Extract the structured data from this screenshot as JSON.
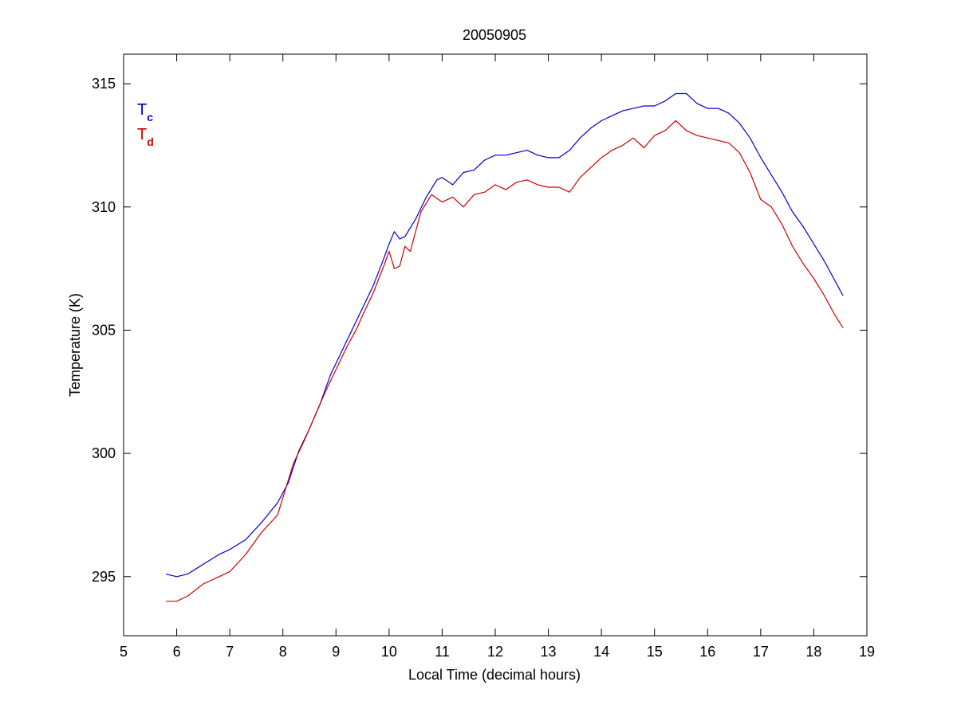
{
  "chart_data": {
    "type": "line",
    "title": "20050905",
    "xlabel": "Local Time (decimal hours)",
    "ylabel": "Temperature (K)",
    "xlim": [
      5,
      19
    ],
    "ylim": [
      292.6,
      316.2
    ],
    "xticks": [
      "5",
      "6",
      "7",
      "8",
      "9",
      "10",
      "11",
      "12",
      "13",
      "14",
      "15",
      "16",
      "17",
      "18",
      "19"
    ],
    "yticks": [
      "295",
      "300",
      "305",
      "310",
      "315"
    ],
    "xtick_values": [
      5,
      6,
      7,
      8,
      9,
      10,
      11,
      12,
      13,
      14,
      15,
      16,
      17,
      18,
      19
    ],
    "ytick_values": [
      295,
      300,
      305,
      310,
      315
    ],
    "grid": false,
    "legend_position": "top-left",
    "series": [
      {
        "name": "T",
        "subscript": "c",
        "color": "#0000cc",
        "x": [
          5.8,
          6.0,
          6.2,
          6.5,
          6.8,
          7.0,
          7.3,
          7.6,
          7.9,
          8.1,
          8.3,
          8.5,
          8.7,
          8.9,
          9.1,
          9.3,
          9.5,
          9.7,
          9.9,
          10.0,
          10.1,
          10.2,
          10.3,
          10.5,
          10.7,
          10.9,
          11.0,
          11.2,
          11.4,
          11.6,
          11.8,
          12.0,
          12.2,
          12.4,
          12.6,
          12.8,
          13.0,
          13.2,
          13.4,
          13.6,
          13.8,
          14.0,
          14.2,
          14.4,
          14.6,
          14.8,
          15.0,
          15.2,
          15.4,
          15.6,
          15.8,
          16.0,
          16.2,
          16.4,
          16.6,
          16.8,
          17.0,
          17.2,
          17.4,
          17.6,
          17.8,
          18.0,
          18.2,
          18.4,
          18.55
        ],
        "y": [
          295.1,
          295.0,
          295.1,
          295.5,
          295.9,
          296.1,
          296.5,
          297.2,
          298.0,
          298.8,
          300.1,
          301.0,
          302.0,
          303.2,
          304.1,
          305.0,
          305.9,
          306.8,
          307.9,
          308.5,
          309.0,
          308.7,
          308.8,
          309.5,
          310.4,
          311.1,
          311.2,
          310.9,
          311.4,
          311.5,
          311.9,
          312.1,
          312.1,
          312.2,
          312.3,
          312.1,
          312.0,
          312.0,
          312.3,
          312.8,
          313.2,
          313.5,
          313.7,
          313.9,
          314.0,
          314.1,
          314.1,
          314.3,
          314.6,
          314.6,
          314.2,
          314.0,
          314.0,
          313.8,
          313.4,
          312.8,
          312.0,
          311.3,
          310.6,
          309.8,
          309.2,
          308.5,
          307.8,
          307.0,
          306.4
        ]
      },
      {
        "name": "T",
        "subscript": "d",
        "color": "#cc0000",
        "x": [
          5.8,
          6.0,
          6.2,
          6.5,
          6.8,
          7.0,
          7.3,
          7.6,
          7.9,
          8.0,
          8.2,
          8.4,
          8.6,
          8.8,
          9.0,
          9.2,
          9.4,
          9.5,
          9.7,
          9.9,
          10.0,
          10.1,
          10.2,
          10.3,
          10.4,
          10.6,
          10.8,
          11.0,
          11.2,
          11.4,
          11.6,
          11.8,
          12.0,
          12.2,
          12.4,
          12.6,
          12.8,
          13.0,
          13.2,
          13.4,
          13.6,
          13.8,
          14.0,
          14.2,
          14.4,
          14.6,
          14.8,
          15.0,
          15.2,
          15.4,
          15.6,
          15.8,
          16.0,
          16.2,
          16.4,
          16.6,
          16.8,
          17.0,
          17.2,
          17.4,
          17.6,
          17.8,
          18.0,
          18.2,
          18.4,
          18.55
        ],
        "y": [
          294.0,
          294.0,
          294.2,
          294.7,
          295.0,
          295.2,
          295.9,
          296.8,
          297.5,
          298.2,
          299.6,
          300.5,
          301.5,
          302.5,
          303.4,
          304.3,
          305.1,
          305.6,
          306.5,
          307.6,
          308.2,
          307.5,
          307.6,
          308.4,
          308.2,
          309.8,
          310.5,
          310.2,
          310.4,
          310.0,
          310.5,
          310.6,
          310.9,
          310.7,
          311.0,
          311.1,
          310.9,
          310.8,
          310.8,
          310.6,
          311.2,
          311.6,
          312.0,
          312.3,
          312.5,
          312.8,
          312.4,
          312.9,
          313.1,
          313.5,
          313.1,
          312.9,
          312.8,
          312.7,
          312.6,
          312.2,
          311.4,
          310.3,
          310.0,
          309.3,
          308.4,
          307.7,
          307.1,
          306.4,
          305.6,
          305.1
        ]
      }
    ]
  }
}
